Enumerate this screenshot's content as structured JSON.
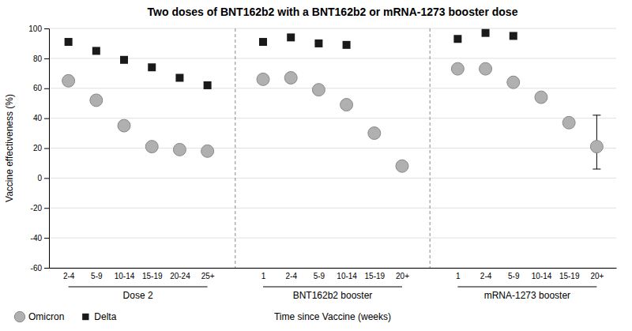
{
  "chart_data": {
    "type": "scatter",
    "title": "Two doses of BNT162b2 with a BNT162b2 or mRNA-1273 booster dose",
    "ylabel": "Vaccine effectiveness (%)",
    "xlabel": "Time since Vaccine (weeks)",
    "ylim": [
      -60,
      100
    ],
    "yticks": [
      -60,
      -40,
      -20,
      0,
      20,
      40,
      60,
      80,
      100
    ],
    "grid": true,
    "legend": "bottom",
    "groups": [
      {
        "label": "Dose 2",
        "categories": [
          "2-4",
          "5-9",
          "10-14",
          "15-19",
          "20-24",
          "25+"
        ]
      },
      {
        "label": "BNT162b2 booster",
        "categories": [
          "1",
          "2-4",
          "5-9",
          "10-14",
          "15-19",
          "20+"
        ]
      },
      {
        "label": "mRNA-1273 booster",
        "categories": [
          "1",
          "2-4",
          "5-9",
          "10-14",
          "15-19",
          "20+"
        ]
      }
    ],
    "series": [
      {
        "name": "Omicron",
        "color": "#b0b0b0",
        "marker": "circle",
        "values": [
          65,
          52,
          35,
          21,
          19,
          18,
          66,
          67,
          59,
          49,
          30,
          8,
          73,
          73,
          64,
          54,
          37,
          21
        ],
        "error_plus": [
          null,
          null,
          null,
          null,
          null,
          null,
          null,
          null,
          null,
          null,
          null,
          null,
          null,
          null,
          null,
          null,
          null,
          21
        ],
        "error_minus": [
          null,
          null,
          null,
          null,
          null,
          null,
          null,
          null,
          null,
          null,
          null,
          null,
          null,
          null,
          null,
          null,
          null,
          15
        ]
      },
      {
        "name": "Delta",
        "color": "#1a1a1a",
        "marker": "square",
        "values": [
          91,
          85,
          79,
          74,
          67,
          62,
          91,
          94,
          90,
          89,
          null,
          null,
          93,
          97,
          95,
          null,
          null,
          null
        ]
      }
    ]
  }
}
